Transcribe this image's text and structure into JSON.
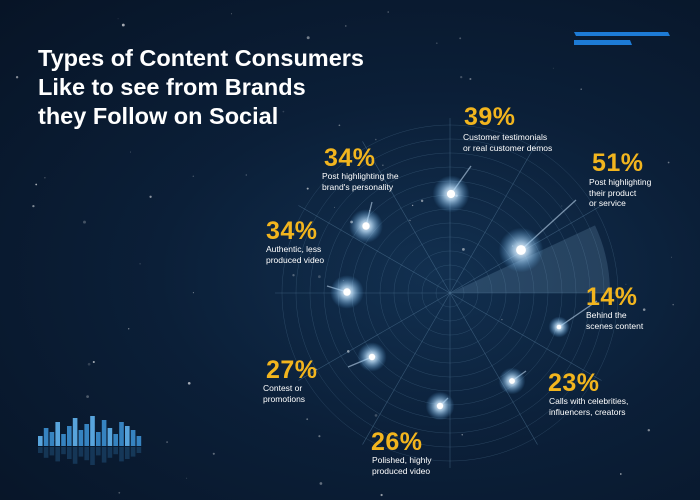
{
  "title": [
    "Types of Content Consumers",
    "Like to see from Brands",
    "they Follow on Social"
  ],
  "colors": {
    "accent": "#f2b51e",
    "background": "#0b1f38",
    "grid": "#5f86a6",
    "logo": "#1d7bd6"
  },
  "chart_data": {
    "type": "radar-bubble",
    "title": "Types of Content Consumers Like to see from Brands they Follow on Social",
    "unit": "%",
    "categories": [
      {
        "value": 39,
        "label": "39%",
        "lines": [
          "Customer testimonials",
          "or real customer demos"
        ]
      },
      {
        "value": 51,
        "label": "51%",
        "lines": [
          "Post highlighting",
          "their product",
          "or service"
        ]
      },
      {
        "value": 14,
        "label": "14%",
        "lines": [
          "Behind the",
          "scenes content"
        ]
      },
      {
        "value": 23,
        "label": "23%",
        "lines": [
          "Calls with celebrities,",
          "influencers, creators"
        ]
      },
      {
        "value": 26,
        "label": "26%",
        "lines": [
          "Polished, highly",
          "produced video"
        ]
      },
      {
        "value": 27,
        "label": "27%",
        "lines": [
          "Contest or",
          "promotions"
        ]
      },
      {
        "value": 34,
        "label": "34%",
        "lines": [
          "Authentic, less",
          "produced video"
        ]
      },
      {
        "value": 34,
        "label": "34%",
        "lines": [
          "Post highlighting the",
          "brand's personality"
        ]
      }
    ]
  }
}
